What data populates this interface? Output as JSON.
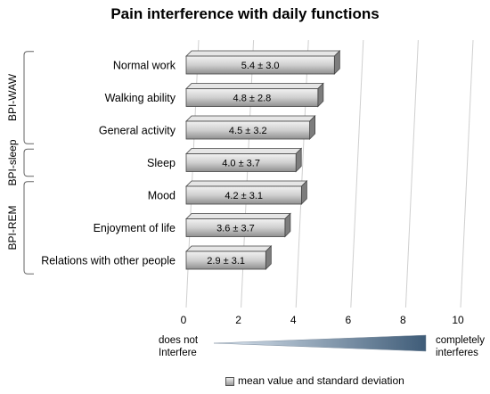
{
  "chart_data": {
    "type": "bar",
    "orientation": "horizontal",
    "title": "Pain interference with daily functions",
    "categories": [
      "Normal work",
      "Walking ability",
      "General activity",
      "Sleep",
      "Mood",
      "Enjoyment of life",
      "Relations with other people"
    ],
    "values": [
      5.4,
      4.8,
      4.5,
      4.0,
      4.2,
      3.6,
      2.9
    ],
    "value_labels": [
      "5.4 ± 3.0",
      "4.8 ± 2.8",
      "4.5 ± 3.2",
      "4.0 ± 3.7",
      "4.2 ± 3.1",
      "3.6 ± 3.7",
      "2.9 ± 3.1"
    ],
    "xlim": [
      0,
      10
    ],
    "xticks": [
      "0",
      "2",
      "4",
      "6",
      "8",
      "10"
    ],
    "groups": [
      {
        "name": "BPI-WAW",
        "members": [
          "Normal work",
          "Walking ability",
          "General activity"
        ]
      },
      {
        "name": "BPI-sleep",
        "members": [
          "Sleep"
        ]
      },
      {
        "name": "BPI-REM",
        "members": [
          "Mood",
          "Enjoyment of life",
          "Relations with other people"
        ]
      }
    ],
    "scale_left": [
      "does not",
      "Interfere"
    ],
    "scale_right": [
      "completely",
      "interferes"
    ],
    "legend": "mean value and standard deviation",
    "grid": true
  }
}
